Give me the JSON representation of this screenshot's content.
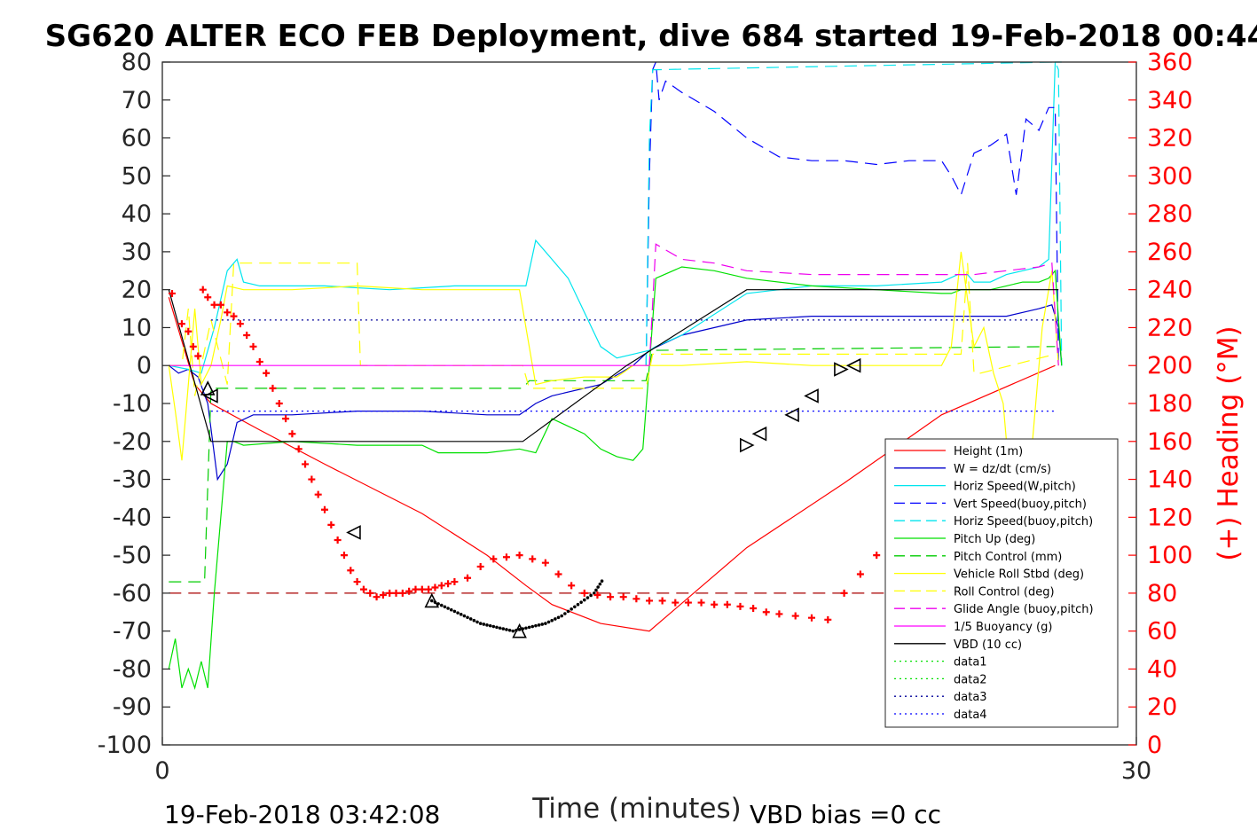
{
  "chart_data": {
    "type": "line",
    "title": "SG620 ALTER ECO FEB Deployment, dive 684 started 19-Feb-2018 00:44",
    "xlabel": "Time (minutes)",
    "ylabel_right": "(+) Heading (°M)",
    "xlim": [
      0,
      30
    ],
    "ylim_left": [
      -100,
      80
    ],
    "ylim_right": [
      0,
      360
    ],
    "x_ticks": [
      "0",
      "30"
    ],
    "y_ticks_left": [
      "80",
      "70",
      "60",
      "50",
      "40",
      "30",
      "20",
      "10",
      "0",
      "-10",
      "-20",
      "-30",
      "-40",
      "-50",
      "-60",
      "-70",
      "-80",
      "-90",
      "-100"
    ],
    "y_ticks_right": [
      "360",
      "340",
      "320",
      "300",
      "280",
      "260",
      "240",
      "220",
      "200",
      "180",
      "160",
      "140",
      "120",
      "100",
      "80",
      "60",
      "40",
      "20",
      "0"
    ],
    "footer_left": "19-Feb-2018 03:42:08",
    "footer_right": "VBD bias =0 cc",
    "legend_position": "lower-right",
    "series": [
      {
        "name": "Height (1m)",
        "color": "#ff0000",
        "dash": "solid",
        "x": [
          0.2,
          1.0,
          1.5,
          3.0,
          5.0,
          8.0,
          10.0,
          11.2,
          12.0,
          13.5,
          15.0,
          18.0,
          21.0,
          24.0,
          27.5
        ],
        "y": [
          18,
          -5,
          -10,
          -17,
          -26,
          -39,
          -50,
          -58,
          -63,
          -68,
          -70,
          -48,
          -31,
          -13,
          0
        ]
      },
      {
        "name": "W = dz/dt (cm/s)",
        "color": "#0000cc",
        "dash": "solid",
        "x": [
          0.2,
          0.5,
          0.8,
          1.1,
          1.4,
          1.7,
          2.0,
          2.3,
          2.8,
          4,
          6,
          8,
          10,
          11,
          11.5,
          12,
          13.5,
          14.5,
          15,
          16,
          18,
          20,
          22,
          24,
          25,
          26,
          27,
          27.4,
          27.6,
          27.7
        ],
        "y": [
          0,
          -2,
          -1,
          -3,
          -10,
          -30,
          -26,
          -15,
          -13,
          -13,
          -12,
          -12,
          -13,
          -13,
          -10,
          -8,
          -5,
          0,
          4,
          8,
          12,
          13,
          13,
          13,
          13,
          13,
          15,
          16,
          10,
          0
        ]
      },
      {
        "name": "Horiz Speed(W,pitch)",
        "color": "#00e5ee",
        "dash": "solid",
        "x": [
          0.2,
          0.8,
          1.2,
          1.6,
          2.0,
          2.3,
          2.5,
          3,
          5,
          7,
          9,
          11,
          11.2,
          11.5,
          12,
          12.5,
          13,
          13.5,
          14,
          14.5,
          15,
          15.2,
          16,
          18,
          20,
          22,
          24,
          24.5,
          24.8,
          25,
          25.5,
          26,
          26.5,
          27,
          27.3,
          27.5,
          27.7
        ],
        "y": [
          0,
          -1,
          -2,
          10,
          25,
          28,
          22,
          21,
          21,
          20,
          21,
          21,
          21,
          33,
          28,
          23,
          14,
          5,
          2,
          3,
          4,
          5,
          8,
          19,
          21,
          21,
          22,
          24,
          24,
          22,
          22,
          24,
          25,
          26,
          28,
          80,
          80
        ]
      },
      {
        "name": "Vert Speed(buoy,pitch)",
        "color": "#0000ff",
        "dash": "dash",
        "x": [
          14.9,
          15.0,
          15.1,
          15.2,
          15.3,
          15.5,
          16,
          17,
          18,
          19,
          20,
          21,
          22,
          23,
          24,
          24.3,
          24.6,
          25,
          25.5,
          26,
          26.3,
          26.6,
          27,
          27.3,
          27.5,
          27.6
        ],
        "y": [
          0,
          50,
          78,
          80,
          70,
          75,
          72,
          67,
          60,
          55,
          54,
          54,
          53,
          54,
          54,
          50,
          45,
          56,
          58,
          61,
          45,
          65,
          62,
          68,
          68,
          0
        ]
      },
      {
        "name": "Horiz Speed(buoy,pitch)",
        "color": "#00e5ee",
        "dash": "dash",
        "x": [
          14.9,
          15.0,
          15.1,
          15.2,
          27.5,
          27.6,
          27.7
        ],
        "y": [
          0,
          60,
          78,
          78,
          80,
          78,
          0
        ]
      },
      {
        "name": "Pitch Up (deg)",
        "color": "#00e000",
        "dash": "solid",
        "x": [
          0.2,
          0.4,
          0.6,
          0.8,
          1.0,
          1.2,
          1.4,
          1.6,
          1.8,
          2.0,
          2.2,
          2.5,
          4,
          6,
          8,
          8.5,
          10,
          11,
          11.5,
          12,
          13,
          13.5,
          14,
          14.5,
          14.8,
          15,
          15.2,
          16,
          17,
          18,
          20,
          22,
          24,
          24.3,
          24.6,
          25,
          25.5,
          26,
          26.5,
          27,
          27.3,
          27.5,
          27.7
        ],
        "y": [
          -80,
          -72,
          -85,
          -80,
          -85,
          -78,
          -85,
          -60,
          -40,
          -20,
          -20,
          -21,
          -20,
          -21,
          -21,
          -23,
          -23,
          -22,
          -23,
          -14,
          -18,
          -22,
          -24,
          -25,
          -22,
          0,
          23,
          26,
          25,
          23,
          21,
          20,
          19,
          19,
          20,
          20,
          20,
          21,
          22,
          22,
          23,
          25,
          0
        ]
      },
      {
        "name": "Pitch Control (mm)",
        "color": "#00cc00",
        "dash": "dash",
        "x": [
          0.2,
          1.1,
          1.3,
          1.5,
          11.1,
          11.3,
          14.9,
          15.1,
          27.5
        ],
        "y": [
          -57,
          -57,
          -57,
          -6,
          -6,
          -4,
          -4,
          4,
          5
        ]
      },
      {
        "name": "Vehicle Roll Stbd (deg)",
        "color": "#ffff00",
        "dash": "solid",
        "x": [
          0.2,
          0.4,
          0.6,
          0.8,
          1.0,
          1.2,
          1.5,
          1.8,
          2.0,
          2.5,
          4,
          6,
          8,
          10,
          11,
          11.5,
          12,
          13,
          14,
          14.5,
          15,
          15.5,
          16,
          18,
          20,
          22,
          24,
          24.3,
          24.6,
          25,
          25.3,
          25.6,
          25.9,
          26.2,
          26.5,
          26.8,
          27.1,
          27.4,
          27.6
        ],
        "y": [
          0,
          -12,
          -25,
          -5,
          15,
          -5,
          0,
          12,
          21,
          20,
          20,
          21,
          20,
          20,
          20,
          -5,
          -4,
          -3,
          -3,
          0,
          0,
          0,
          0,
          1,
          0,
          0,
          0,
          5,
          30,
          5,
          10,
          -2,
          -10,
          -40,
          -40,
          -20,
          10,
          25,
          0
        ]
      },
      {
        "name": "Roll Control (deg)",
        "color": "#ffff00",
        "dash": "dash",
        "x": [
          0.2,
          0.6,
          0.8,
          1.0,
          1.5,
          2.0,
          2.2,
          6.0,
          6.1,
          11.1,
          11.3,
          14.9,
          15.1,
          24.6,
          24.8,
          25.0,
          25.2,
          27.5
        ],
        "y": [
          0,
          0,
          15,
          -8,
          12,
          -5,
          27,
          27,
          0,
          0,
          -6,
          -6,
          3,
          3,
          27,
          -2,
          -2,
          3
        ]
      },
      {
        "name": "Glide Angle (buoy,pitch)",
        "color": "#ee00ee",
        "dash": "dash",
        "x": [
          14.9,
          15.0,
          15.2,
          16,
          17,
          18,
          20,
          22,
          24,
          25,
          26,
          27,
          27.4,
          27.6
        ],
        "y": [
          0,
          0,
          32,
          28,
          27,
          25,
          24,
          24,
          24,
          24,
          25,
          26,
          27,
          0
        ]
      },
      {
        "name": "1/5 Buoyancy (g)",
        "color": "#ff00ff",
        "dash": "solid",
        "x": [
          0.2,
          14.9
        ],
        "y": [
          0,
          0
        ]
      },
      {
        "name": "VBD (10 cc)",
        "color": "#000000",
        "dash": "solid",
        "x": [
          0.2,
          1.5,
          11.1,
          14.3,
          18.0,
          27.6
        ],
        "y": [
          20,
          -20,
          -20,
          0,
          20,
          20
        ]
      },
      {
        "name": "data1",
        "color": "#00e000",
        "dash": "dot",
        "x": [],
        "y": []
      },
      {
        "name": "data2",
        "color": "#00e000",
        "dash": "dot",
        "x": [],
        "y": []
      },
      {
        "name": "data3",
        "color": "#000099",
        "dash": "dot",
        "x": [
          1.5,
          27.5
        ],
        "y": [
          12,
          12
        ]
      },
      {
        "name": "data4",
        "color": "#0000ff",
        "dash": "dot",
        "x": [
          1.5,
          27.5
        ],
        "y": [
          -12,
          -12
        ]
      }
    ],
    "extra_lines": [
      {
        "color": "#aa0000",
        "dash": "dash",
        "x": [
          0.2,
          27.5
        ],
        "y": [
          -60,
          -60
        ]
      }
    ],
    "heading": {
      "axis": "right",
      "color": "#ff0000",
      "marker": "+",
      "x": [
        0.3,
        0.6,
        0.8,
        0.95,
        1.1,
        1.25,
        1.4,
        1.6,
        1.8,
        2.0,
        2.2,
        2.4,
        2.6,
        2.8,
        3.0,
        3.2,
        3.4,
        3.6,
        3.8,
        4.0,
        4.2,
        4.4,
        4.6,
        4.8,
        5.0,
        5.2,
        5.4,
        5.6,
        5.8,
        6.0,
        6.2,
        6.4,
        6.6,
        6.8,
        7.0,
        7.2,
        7.4,
        7.6,
        7.8,
        8.0,
        8.2,
        8.4,
        8.6,
        8.8,
        9.0,
        9.4,
        9.8,
        10.2,
        10.6,
        11.0,
        11.4,
        11.8,
        12.2,
        12.6,
        13.0,
        13.4,
        13.8,
        14.2,
        14.6,
        15.0,
        15.4,
        15.8,
        16.2,
        16.6,
        17.0,
        17.4,
        17.8,
        18.2,
        18.6,
        19.0,
        19.5,
        20.0,
        20.5,
        21.0,
        21.5,
        22.0,
        22.5,
        23.0,
        23.5,
        24.0,
        24.3,
        24.5,
        24.7,
        24.9,
        25.1,
        25.3,
        25.5,
        25.7,
        25.9,
        26.1,
        26.3,
        26.5,
        26.7,
        26.9,
        27.1,
        27.3,
        27.5
      ],
      "y": [
        238,
        222,
        218,
        210,
        205,
        240,
        236,
        232,
        232,
        228,
        226,
        222,
        216,
        210,
        202,
        196,
        188,
        180,
        172,
        164,
        156,
        148,
        140,
        132,
        124,
        116,
        108,
        100,
        92,
        86,
        82,
        80,
        78,
        79,
        80,
        80,
        80,
        81,
        82,
        82,
        82,
        83,
        84,
        85,
        86,
        88,
        94,
        98,
        99,
        100,
        98,
        96,
        90,
        84,
        80,
        79,
        78,
        78,
        77,
        76,
        76,
        75,
        75,
        75,
        74,
        74,
        73,
        72,
        70,
        69,
        68,
        67,
        66,
        80,
        90,
        100,
        110,
        118,
        120,
        120,
        120,
        100,
        90,
        75,
        60,
        55,
        50,
        47,
        44,
        42,
        40,
        38,
        37,
        38,
        42,
        45,
        40
      ]
    },
    "triangles": [
      {
        "x": 1.4,
        "y": -6,
        "dir": "up"
      },
      {
        "x": 1.5,
        "y": -8,
        "dir": "left"
      },
      {
        "x": 5.9,
        "y": -44,
        "dir": "left"
      },
      {
        "x": 8.3,
        "y": -62,
        "dir": "up"
      },
      {
        "x": 11.0,
        "y": -70,
        "dir": "up"
      },
      {
        "x": 18.0,
        "y": -21,
        "dir": "right"
      },
      {
        "x": 18.4,
        "y": -18,
        "dir": "left"
      },
      {
        "x": 19.4,
        "y": -13,
        "dir": "left"
      },
      {
        "x": 20.0,
        "y": -8,
        "dir": "left"
      },
      {
        "x": 20.9,
        "y": -1,
        "dir": "right"
      },
      {
        "x": 21.3,
        "y": 0,
        "dir": "left"
      }
    ],
    "dotted_curve": {
      "color": "#000000",
      "x": [
        8.3,
        8.8,
        9.3,
        9.8,
        10.3,
        10.8,
        11.3,
        11.8,
        12.3,
        12.8,
        13.3,
        13.6
      ],
      "y": [
        -62,
        -64,
        -66,
        -68,
        -69,
        -70,
        -69,
        -68,
        -66,
        -63,
        -60,
        -56
      ]
    }
  }
}
